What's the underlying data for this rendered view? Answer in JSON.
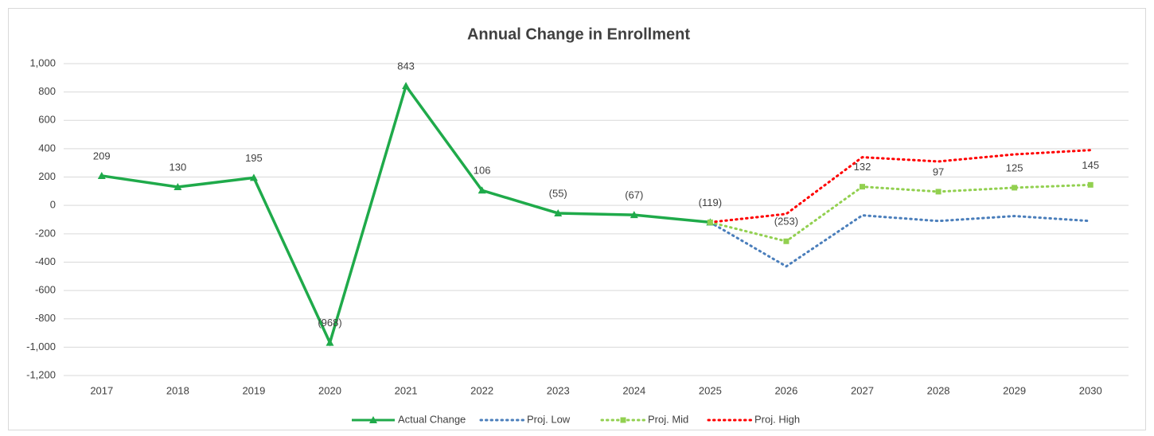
{
  "chart_data": {
    "type": "line",
    "title": "Annual Change in Enrollment",
    "categories": [
      "2017",
      "2018",
      "2019",
      "2020",
      "2021",
      "2022",
      "2023",
      "2024",
      "2025",
      "2026",
      "2027",
      "2028",
      "2029",
      "2030"
    ],
    "series": [
      {
        "name": "Actual Change",
        "color": "#1faa4a",
        "dash": "solid",
        "marker": "triangle",
        "values": [
          209,
          130,
          195,
          -968,
          843,
          106,
          -55,
          -67,
          -119,
          null,
          null,
          null,
          null,
          null
        ],
        "value_labels": [
          "209",
          "130",
          "195",
          "(968)",
          "843",
          "106",
          "(55)",
          "(67)",
          "(119)",
          null,
          null,
          null,
          null,
          null
        ]
      },
      {
        "name": "Proj. Low",
        "color": "#4a7ebb",
        "dash": "dotted",
        "marker": "none",
        "values": [
          null,
          null,
          null,
          null,
          null,
          null,
          null,
          null,
          -119,
          -430,
          -70,
          -110,
          -75,
          -110
        ]
      },
      {
        "name": "Proj. Mid",
        "color": "#92d050",
        "dash": "dotted",
        "marker": "square",
        "values": [
          null,
          null,
          null,
          null,
          null,
          null,
          null,
          null,
          -119,
          -253,
          132,
          97,
          125,
          145
        ],
        "value_labels": [
          null,
          null,
          null,
          null,
          null,
          null,
          null,
          null,
          null,
          "(253)",
          "132",
          "97",
          "125",
          "145"
        ]
      },
      {
        "name": "Proj. High",
        "color": "#ff0000",
        "dash": "dotted",
        "marker": "none",
        "values": [
          null,
          null,
          null,
          null,
          null,
          null,
          null,
          null,
          -119,
          -60,
          340,
          310,
          360,
          390
        ]
      }
    ],
    "ylim": [
      -1200,
      1000
    ],
    "yticks": [
      {
        "value": -1200,
        "label": "-1,200"
      },
      {
        "value": -1000,
        "label": "-1,000"
      },
      -800,
      -600,
      -400,
      -200,
      0,
      200,
      400,
      600,
      800,
      {
        "value": 1000,
        "label": "1,000"
      }
    ],
    "grid": true,
    "legend": "bottom"
  }
}
